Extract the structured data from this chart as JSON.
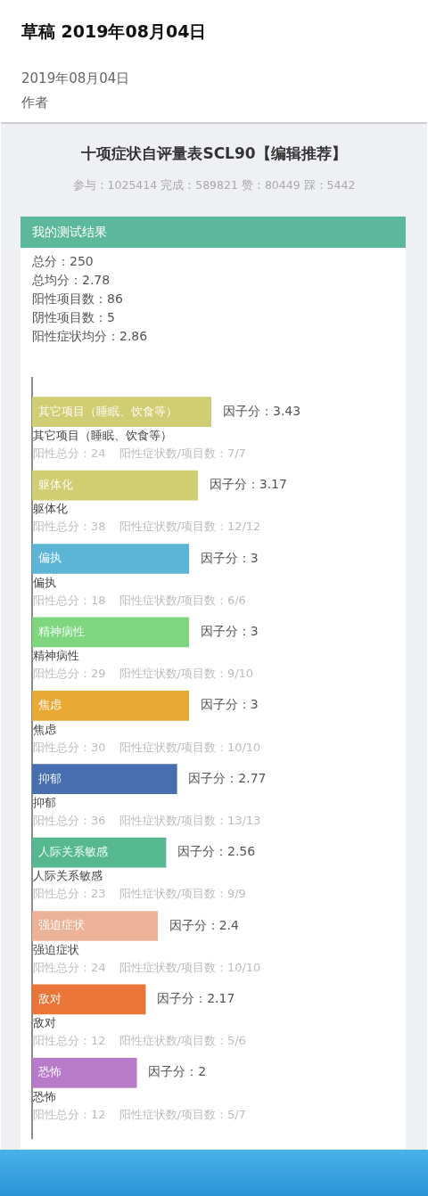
{
  "chart_data": {
    "type": "bar",
    "orientation": "horizontal",
    "title": "十项症状自评量表SCL90【编辑推荐】",
    "subtitle": "参与：1025414 完成：589821 赞：80449 踩：5442",
    "categories": [
      "其它项目（睡眠、饮食等）",
      "躯体化",
      "偏执",
      "精神病性",
      "焦虑",
      "抑郁",
      "人际关系敏感",
      "强迫症状",
      "敌对",
      "恐怖"
    ],
    "values": [
      3.43,
      3.17,
      3,
      3,
      3,
      2.77,
      2.56,
      2.4,
      2.17,
      2
    ],
    "colors": [
      "#d0cd72",
      "#d0cd72",
      "#5db5d6",
      "#7ed67f",
      "#e9a935",
      "#4870b0",
      "#55b88f",
      "#ebb298",
      "#ea7538",
      "#b87bca"
    ],
    "value_labels": [
      "因子分：3.43",
      "因子分：3.17",
      "因子分：3",
      "因子分：3",
      "因子分：3",
      "因子分：2.77",
      "因子分：2.56",
      "因子分：2.4",
      "因子分：2.17",
      "因子分：2"
    ],
    "annotations": [
      "草稿 2019年08月04日",
      "2019年08月04日",
      "作者",
      "我的测试结果",
      "总分：250",
      "总均分：2.78",
      "阳性项目数：86",
      "阴性项目数：5",
      "阳性症状均分：2.86",
      "阳性总分：24",
      "阳性症状数/项目数：7/7",
      "阳性总分：38",
      "阳性症状数/项目数：12/12",
      "阳性总分：18",
      "阳性症状数/项目数：6/6",
      "阳性总分：29",
      "阳性症状数/项目数：9/10",
      "阳性总分：30",
      "阳性症状数/项目数：10/10",
      "阳性总分：36",
      "阳性症状数/项目数：13/13",
      "阳性总分：23",
      "阳性症状数/项目数：9/9",
      "阳性总分：24",
      "阳性症状数/项目数：10/10",
      "阳性总分：12",
      "阳性症状数/项目数：5/6",
      "阳性总分：12",
      "阳性症状数/项目数：5/7"
    ],
    "legend": false
  }
}
